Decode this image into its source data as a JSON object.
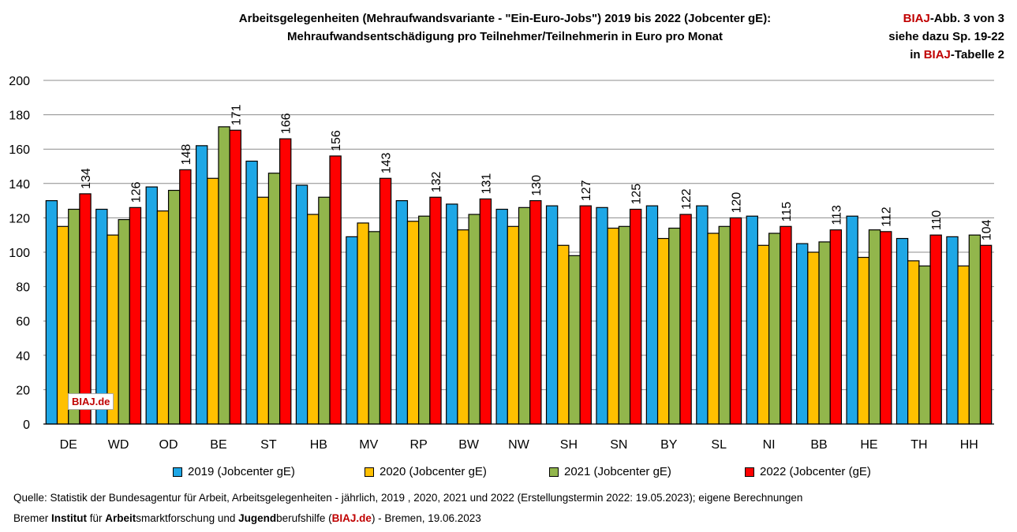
{
  "header": {
    "title_line1": "Arbeitsgelegenheiten (Mehraufwandsvariante - \"Ein-Euro-Jobs\") 2019 bis 2022 (Jobcenter gE):",
    "title_line2": "Mehraufwandsentschädigung pro Teilnehmer/Teilnehmerin in Euro pro Monat",
    "ref_line1_brand": "BIAJ",
    "ref_line1_rest": "-Abb. 3 von 3",
    "ref_line2": "siehe dazu Sp. 19-22",
    "ref_line3_pre": "in ",
    "ref_line3_brand": "BIAJ",
    "ref_line3_post": "-Tabelle 2"
  },
  "watermark": "BIAJ.de",
  "footer": {
    "source": "Quelle: Statistik der Bundesagentur für Arbeit, Arbeitsgelegenheiten - jährlich, 2019 , 2020, 2021 und 2022 (Erstellungstermin 2022: 19.05.2023); eigene Berechnungen",
    "credit_parts": [
      {
        "text": "Bremer ",
        "bold": false,
        "red": false
      },
      {
        "text": "Institut",
        "bold": true,
        "red": false
      },
      {
        "text": " für ",
        "bold": false,
        "red": false
      },
      {
        "text": "Arbeit",
        "bold": true,
        "red": false
      },
      {
        "text": "smarktforschung und ",
        "bold": false,
        "red": false
      },
      {
        "text": "Jugend",
        "bold": true,
        "red": false
      },
      {
        "text": "berufshilfe (",
        "bold": false,
        "red": false
      },
      {
        "text": "BIAJ.de",
        "bold": true,
        "red": true
      },
      {
        "text": ") - Bremen, 19.06.2023",
        "bold": false,
        "red": false
      }
    ]
  },
  "colors": {
    "s2019": "#1ea7e6",
    "s2020": "#ffc000",
    "s2021": "#92b64c",
    "s2022": "#ff0000",
    "brand": "#c00000",
    "grid": "#8c8c8c"
  },
  "chart_data": {
    "type": "bar",
    "categories": [
      "DE",
      "WD",
      "OD",
      "BE",
      "ST",
      "HB",
      "MV",
      "RP",
      "BW",
      "NW",
      "SH",
      "SN",
      "BY",
      "SL",
      "NI",
      "BB",
      "HE",
      "TH",
      "HH"
    ],
    "series": [
      {
        "name": "2019 (Jobcenter gE)",
        "values": [
          130,
          125,
          138,
          162,
          153,
          139,
          109,
          130,
          128,
          125,
          127,
          126,
          127,
          127,
          121,
          105,
          121,
          108,
          109
        ]
      },
      {
        "name": "2020 (Jobcenter gE)",
        "values": [
          115,
          110,
          124,
          143,
          132,
          122,
          117,
          118,
          113,
          115,
          104,
          114,
          108,
          111,
          104,
          100,
          97,
          95,
          92
        ]
      },
      {
        "name": "2021 (Jobcenter gE)",
        "values": [
          125,
          119,
          136,
          173,
          146,
          132,
          112,
          121,
          122,
          126,
          98,
          115,
          114,
          115,
          111,
          106,
          113,
          92,
          110
        ]
      },
      {
        "name": "2022 (Jobcenter (gE)",
        "values": [
          134,
          126,
          148,
          171,
          166,
          156,
          143,
          132,
          131,
          130,
          127,
          125,
          122,
          120,
          115,
          113,
          112,
          110,
          104
        ]
      }
    ],
    "data_labels_series": "2022 (Jobcenter (gE)",
    "ylim": [
      0,
      200
    ],
    "yticks": [
      0,
      20,
      40,
      60,
      80,
      100,
      120,
      140,
      160,
      180,
      200
    ],
    "grid": true,
    "legend_position": "bottom"
  }
}
